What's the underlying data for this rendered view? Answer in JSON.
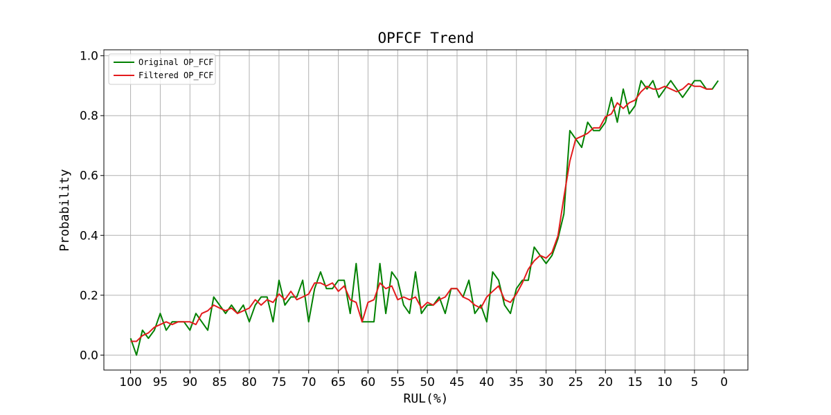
{
  "chart_data": {
    "type": "line",
    "title": "OPFCF Trend",
    "xlabel": "RUL(%)",
    "ylabel": "Probability",
    "xlim": [
      104.5,
      -4
    ],
    "ylim": [
      -0.05,
      1.02
    ],
    "x_ticks": [
      100,
      95,
      90,
      85,
      80,
      75,
      70,
      65,
      60,
      55,
      50,
      45,
      40,
      35,
      30,
      25,
      20,
      15,
      10,
      5,
      0
    ],
    "x_tick_labels": [
      "100",
      "95",
      "90",
      "85",
      "80",
      "75",
      "70",
      "65",
      "60",
      "55",
      "50",
      "45",
      "40",
      "35",
      "30",
      "25",
      "20",
      "15",
      "10",
      "5",
      "0"
    ],
    "y_ticks": [
      0.0,
      0.2,
      0.4,
      0.6,
      0.8,
      1.0
    ],
    "y_tick_labels": [
      "0.0",
      "0.2",
      "0.4",
      "0.6",
      "0.8",
      "1.0"
    ],
    "grid": true,
    "legend_position": "top-left",
    "series": [
      {
        "name": "Original OP_FCF",
        "color": "#008000",
        "x": [
          100,
          99,
          98,
          97,
          96,
          95,
          94,
          93,
          92,
          91,
          90,
          89,
          88,
          87,
          86,
          85,
          84,
          83,
          82,
          81,
          80,
          79,
          78,
          77,
          76,
          75,
          74,
          73,
          72,
          71,
          70,
          69,
          68,
          67,
          66,
          65,
          64,
          63,
          62,
          61,
          60,
          59,
          58,
          57,
          56,
          55,
          54,
          53,
          52,
          51,
          50,
          49,
          48,
          47,
          46,
          45,
          44,
          43,
          42,
          41,
          40,
          39,
          38,
          37,
          36,
          35,
          34,
          33,
          32,
          31,
          30,
          29,
          28,
          27,
          26,
          25,
          24,
          23,
          22,
          21,
          20,
          19,
          18,
          17,
          16,
          15,
          14,
          13,
          12,
          11,
          10,
          9,
          8,
          7,
          6,
          5,
          4,
          3,
          2,
          1
        ],
        "y": [
          0.056,
          0.0,
          0.083,
          0.056,
          0.083,
          0.139,
          0.083,
          0.111,
          0.111,
          0.111,
          0.083,
          0.139,
          0.111,
          0.083,
          0.194,
          0.167,
          0.139,
          0.167,
          0.139,
          0.167,
          0.111,
          0.167,
          0.194,
          0.194,
          0.111,
          0.25,
          0.167,
          0.194,
          0.194,
          0.25,
          0.111,
          0.222,
          0.278,
          0.222,
          0.222,
          0.25,
          0.25,
          0.139,
          0.306,
          0.111,
          0.111,
          0.111,
          0.306,
          0.139,
          0.278,
          0.25,
          0.167,
          0.139,
          0.278,
          0.139,
          0.167,
          0.167,
          0.194,
          0.139,
          0.222,
          0.222,
          0.194,
          0.25,
          0.139,
          0.167,
          0.111,
          0.278,
          0.25,
          0.167,
          0.139,
          0.222,
          0.25,
          0.25,
          0.361,
          0.333,
          0.306,
          0.333,
          0.389,
          0.472,
          0.75,
          0.722,
          0.694,
          0.778,
          0.75,
          0.75,
          0.778,
          0.861,
          0.778,
          0.889,
          0.806,
          0.833,
          0.917,
          0.889,
          0.917,
          0.861,
          0.889,
          0.917,
          0.889,
          0.861,
          0.889,
          0.917,
          0.917,
          0.889,
          0.889,
          0.917
        ]
      },
      {
        "name": "Filtered OP_FCF",
        "color": "#e31a1c",
        "x": [
          100,
          99,
          98,
          97,
          96,
          95,
          94,
          93,
          92,
          91,
          90,
          89,
          88,
          87,
          86,
          85,
          84,
          83,
          82,
          81,
          80,
          79,
          78,
          77,
          76,
          75,
          74,
          73,
          72,
          71,
          70,
          69,
          68,
          67,
          66,
          65,
          64,
          63,
          62,
          61,
          60,
          59,
          58,
          57,
          56,
          55,
          54,
          53,
          52,
          51,
          50,
          49,
          48,
          47,
          46,
          45,
          44,
          43,
          42,
          41,
          40,
          39,
          38,
          37,
          36,
          35,
          34,
          33,
          32,
          31,
          30,
          29,
          28,
          27,
          26,
          25,
          24,
          23,
          22,
          21,
          20,
          19,
          18,
          17,
          16,
          15,
          14,
          13,
          12,
          11,
          10,
          9,
          8,
          7,
          6,
          5,
          4,
          3,
          2
        ],
        "y": [
          0.046,
          0.046,
          0.065,
          0.074,
          0.093,
          0.102,
          0.111,
          0.102,
          0.111,
          0.111,
          0.111,
          0.102,
          0.139,
          0.148,
          0.167,
          0.157,
          0.148,
          0.157,
          0.139,
          0.148,
          0.157,
          0.185,
          0.167,
          0.185,
          0.176,
          0.204,
          0.185,
          0.213,
          0.185,
          0.194,
          0.204,
          0.241,
          0.241,
          0.231,
          0.241,
          0.213,
          0.231,
          0.185,
          0.176,
          0.111,
          0.176,
          0.185,
          0.241,
          0.222,
          0.231,
          0.185,
          0.194,
          0.185,
          0.194,
          0.157,
          0.176,
          0.167,
          0.185,
          0.194,
          0.222,
          0.222,
          0.194,
          0.185,
          0.167,
          0.157,
          0.194,
          0.213,
          0.231,
          0.185,
          0.176,
          0.204,
          0.241,
          0.287,
          0.315,
          0.333,
          0.324,
          0.343,
          0.398,
          0.528,
          0.648,
          0.722,
          0.731,
          0.741,
          0.759,
          0.759,
          0.796,
          0.806,
          0.843,
          0.824,
          0.843,
          0.852,
          0.88,
          0.898,
          0.889,
          0.889,
          0.898,
          0.889,
          0.88,
          0.889,
          0.907,
          0.898,
          0.898,
          0.889,
          0.889
        ]
      }
    ]
  }
}
